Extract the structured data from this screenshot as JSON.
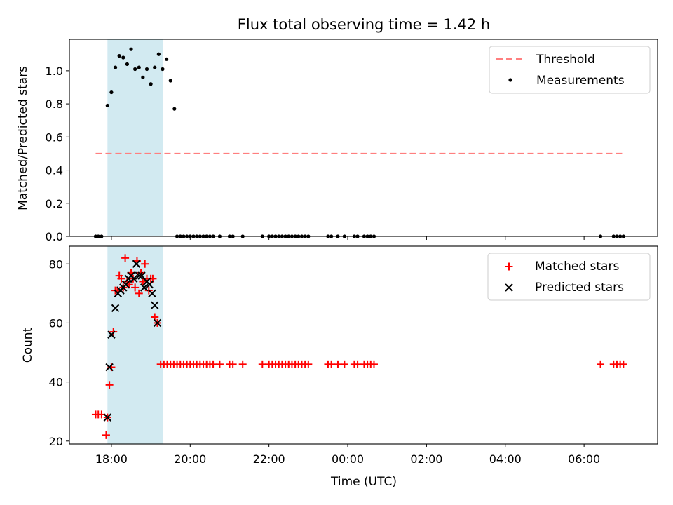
{
  "chart_data": {
    "title": "Flux total observing time = 1.42 h",
    "shaded_span": [
      "17:54",
      "19:19"
    ],
    "shade_color": "#add8e6",
    "xlabel": "Time (UTC)",
    "x_ticks": [
      "18:00",
      "20:00",
      "22:00",
      "00:00",
      "02:00",
      "04:00",
      "06:00"
    ],
    "xlim": [
      "16:56",
      "07:52"
    ],
    "top": {
      "type": "scatter",
      "ylabel": "Matched/Predicted stars",
      "ylim": [
        0,
        1.19
      ],
      "y_ticks": [
        "0.0",
        "0.2",
        "0.4",
        "0.6",
        "0.8",
        "1.0"
      ],
      "threshold": {
        "label": "Threshold",
        "value": 0.5,
        "x_range": [
          "17:36",
          "06:58"
        ],
        "color": "#ff7f7f"
      },
      "series": {
        "name": "Measurements",
        "color": "#000000",
        "points": [
          [
            "17:36",
            0
          ],
          [
            "17:40",
            0
          ],
          [
            "17:45",
            0
          ],
          [
            "17:54",
            0.79
          ],
          [
            "18:00",
            0.87
          ],
          [
            "18:06",
            1.02
          ],
          [
            "18:12",
            1.09
          ],
          [
            "18:18",
            1.08
          ],
          [
            "18:24",
            1.04
          ],
          [
            "18:30",
            1.13
          ],
          [
            "18:36",
            1.01
          ],
          [
            "18:42",
            1.02
          ],
          [
            "18:48",
            0.96
          ],
          [
            "18:54",
            1.01
          ],
          [
            "19:00",
            0.92
          ],
          [
            "19:06",
            1.02
          ],
          [
            "19:12",
            1.1
          ],
          [
            "19:18",
            1.01
          ],
          [
            "19:24",
            1.07
          ],
          [
            "19:30",
            0.94
          ],
          [
            "19:36",
            0.77
          ],
          [
            "19:40",
            0
          ],
          [
            "19:45",
            0
          ],
          [
            "19:50",
            0
          ],
          [
            "19:55",
            0
          ],
          [
            "20:00",
            0
          ],
          [
            "20:05",
            0
          ],
          [
            "20:10",
            0
          ],
          [
            "20:15",
            0
          ],
          [
            "20:20",
            0
          ],
          [
            "20:25",
            0
          ],
          [
            "20:30",
            0
          ],
          [
            "20:35",
            0
          ],
          [
            "20:45",
            0
          ],
          [
            "21:00",
            0
          ],
          [
            "21:05",
            0
          ],
          [
            "21:20",
            0
          ],
          [
            "21:50",
            0
          ],
          [
            "22:00",
            0
          ],
          [
            "22:05",
            0
          ],
          [
            "22:10",
            0
          ],
          [
            "22:15",
            0
          ],
          [
            "22:20",
            0
          ],
          [
            "22:25",
            0
          ],
          [
            "22:30",
            0
          ],
          [
            "22:35",
            0
          ],
          [
            "22:40",
            0
          ],
          [
            "22:45",
            0
          ],
          [
            "22:50",
            0
          ],
          [
            "22:55",
            0
          ],
          [
            "23:00",
            0
          ],
          [
            "23:30",
            0
          ],
          [
            "23:35",
            0
          ],
          [
            "23:45",
            0
          ],
          [
            "23:55",
            0
          ],
          [
            "00:10",
            0
          ],
          [
            "00:15",
            0
          ],
          [
            "00:25",
            0
          ],
          [
            "00:30",
            0
          ],
          [
            "00:35",
            0
          ],
          [
            "00:40",
            0
          ],
          [
            "06:25",
            0
          ],
          [
            "06:45",
            0
          ],
          [
            "06:50",
            0
          ],
          [
            "06:55",
            0
          ],
          [
            "07:00",
            0
          ]
        ]
      },
      "legend_position": "upper right"
    },
    "bottom": {
      "type": "scatter",
      "ylabel": "Count",
      "ylim": [
        19,
        86
      ],
      "y_ticks": [
        "20",
        "40",
        "60",
        "80"
      ],
      "series": [
        {
          "name": "Matched stars",
          "marker": "+",
          "color": "#ff0000",
          "points": [
            [
              "17:36",
              29
            ],
            [
              "17:40",
              29
            ],
            [
              "17:45",
              29
            ],
            [
              "17:52",
              22
            ],
            [
              "17:54",
              28
            ],
            [
              "17:57",
              39
            ],
            [
              "18:00",
              45
            ],
            [
              "18:03",
              57
            ],
            [
              "18:06",
              71
            ],
            [
              "18:09",
              71
            ],
            [
              "18:12",
              76
            ],
            [
              "18:15",
              75
            ],
            [
              "18:18",
              72
            ],
            [
              "18:21",
              82
            ],
            [
              "18:24",
              74
            ],
            [
              "18:27",
              73
            ],
            [
              "18:30",
              77
            ],
            [
              "18:33",
              75
            ],
            [
              "18:36",
              72
            ],
            [
              "18:39",
              81
            ],
            [
              "18:42",
              70
            ],
            [
              "18:45",
              77
            ],
            [
              "18:48",
              74
            ],
            [
              "18:51",
              80
            ],
            [
              "18:54",
              75
            ],
            [
              "18:57",
              71
            ],
            [
              "19:00",
              75
            ],
            [
              "19:03",
              75
            ],
            [
              "19:06",
              62
            ],
            [
              "19:10",
              60
            ],
            [
              "19:15",
              46
            ],
            [
              "19:20",
              46
            ],
            [
              "19:25",
              46
            ],
            [
              "19:30",
              46
            ],
            [
              "19:35",
              46
            ],
            [
              "19:40",
              46
            ],
            [
              "19:45",
              46
            ],
            [
              "19:50",
              46
            ],
            [
              "19:55",
              46
            ],
            [
              "20:00",
              46
            ],
            [
              "20:05",
              46
            ],
            [
              "20:10",
              46
            ],
            [
              "20:15",
              46
            ],
            [
              "20:20",
              46
            ],
            [
              "20:25",
              46
            ],
            [
              "20:30",
              46
            ],
            [
              "20:35",
              46
            ],
            [
              "20:45",
              46
            ],
            [
              "21:00",
              46
            ],
            [
              "21:05",
              46
            ],
            [
              "21:20",
              46
            ],
            [
              "21:50",
              46
            ],
            [
              "22:00",
              46
            ],
            [
              "22:05",
              46
            ],
            [
              "22:10",
              46
            ],
            [
              "22:15",
              46
            ],
            [
              "22:20",
              46
            ],
            [
              "22:25",
              46
            ],
            [
              "22:30",
              46
            ],
            [
              "22:35",
              46
            ],
            [
              "22:40",
              46
            ],
            [
              "22:45",
              46
            ],
            [
              "22:50",
              46
            ],
            [
              "22:55",
              46
            ],
            [
              "23:00",
              46
            ],
            [
              "23:30",
              46
            ],
            [
              "23:35",
              46
            ],
            [
              "23:45",
              46
            ],
            [
              "23:55",
              46
            ],
            [
              "00:10",
              46
            ],
            [
              "00:15",
              46
            ],
            [
              "00:25",
              46
            ],
            [
              "00:30",
              46
            ],
            [
              "00:35",
              46
            ],
            [
              "00:40",
              46
            ],
            [
              "06:25",
              46
            ],
            [
              "06:45",
              46
            ],
            [
              "06:50",
              46
            ],
            [
              "06:55",
              46
            ],
            [
              "07:00",
              46
            ]
          ]
        },
        {
          "name": "Predicted stars",
          "marker": "x",
          "color": "#000000",
          "points": [
            [
              "17:54",
              28
            ],
            [
              "17:57",
              45
            ],
            [
              "18:00",
              56
            ],
            [
              "18:06",
              65
            ],
            [
              "18:10",
              70
            ],
            [
              "18:14",
              71
            ],
            [
              "18:18",
              72
            ],
            [
              "18:22",
              73
            ],
            [
              "18:26",
              75
            ],
            [
              "18:30",
              76
            ],
            [
              "18:34",
              75
            ],
            [
              "18:38",
              80
            ],
            [
              "18:42",
              76
            ],
            [
              "18:46",
              76
            ],
            [
              "18:50",
              72
            ],
            [
              "18:54",
              74
            ],
            [
              "18:58",
              73
            ],
            [
              "19:02",
              70
            ],
            [
              "19:06",
              66
            ],
            [
              "19:10",
              60
            ]
          ]
        }
      ],
      "legend_position": "upper right"
    }
  }
}
